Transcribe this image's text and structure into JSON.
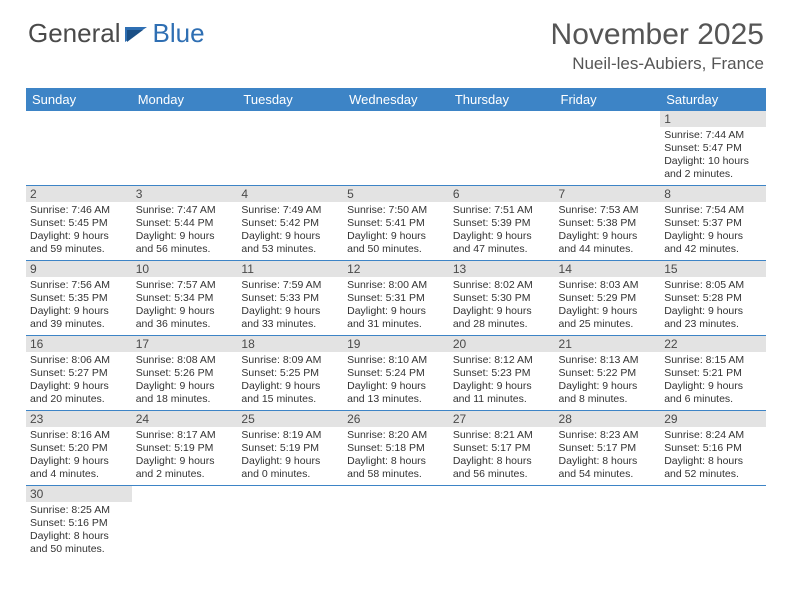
{
  "logo": {
    "part1": "General",
    "part2": "Blue"
  },
  "title": "November 2025",
  "location": "Nueil-les-Aubiers, France",
  "day_headers": [
    "Sunday",
    "Monday",
    "Tuesday",
    "Wednesday",
    "Thursday",
    "Friday",
    "Saturday"
  ],
  "colors": {
    "header_bg": "#3d84c6",
    "header_text": "#ffffff",
    "daynum_bg": "#e3e3e3",
    "cell_border": "#3d84c6",
    "logo_gray": "#4a4a4a",
    "logo_blue": "#2f6fb3",
    "title_color": "#555555",
    "body_text": "#333333"
  },
  "typography": {
    "month_title_size": 30,
    "location_size": 17,
    "header_size": 13,
    "daynum_size": 12,
    "info_size": 10.5,
    "logo_size": 26
  },
  "weeks": [
    [
      null,
      null,
      null,
      null,
      null,
      null,
      {
        "day": "1",
        "sunrise": "Sunrise: 7:44 AM",
        "sunset": "Sunset: 5:47 PM",
        "daylight": "Daylight: 10 hours and 2 minutes."
      }
    ],
    [
      {
        "day": "2",
        "sunrise": "Sunrise: 7:46 AM",
        "sunset": "Sunset: 5:45 PM",
        "daylight": "Daylight: 9 hours and 59 minutes."
      },
      {
        "day": "3",
        "sunrise": "Sunrise: 7:47 AM",
        "sunset": "Sunset: 5:44 PM",
        "daylight": "Daylight: 9 hours and 56 minutes."
      },
      {
        "day": "4",
        "sunrise": "Sunrise: 7:49 AM",
        "sunset": "Sunset: 5:42 PM",
        "daylight": "Daylight: 9 hours and 53 minutes."
      },
      {
        "day": "5",
        "sunrise": "Sunrise: 7:50 AM",
        "sunset": "Sunset: 5:41 PM",
        "daylight": "Daylight: 9 hours and 50 minutes."
      },
      {
        "day": "6",
        "sunrise": "Sunrise: 7:51 AM",
        "sunset": "Sunset: 5:39 PM",
        "daylight": "Daylight: 9 hours and 47 minutes."
      },
      {
        "day": "7",
        "sunrise": "Sunrise: 7:53 AM",
        "sunset": "Sunset: 5:38 PM",
        "daylight": "Daylight: 9 hours and 44 minutes."
      },
      {
        "day": "8",
        "sunrise": "Sunrise: 7:54 AM",
        "sunset": "Sunset: 5:37 PM",
        "daylight": "Daylight: 9 hours and 42 minutes."
      }
    ],
    [
      {
        "day": "9",
        "sunrise": "Sunrise: 7:56 AM",
        "sunset": "Sunset: 5:35 PM",
        "daylight": "Daylight: 9 hours and 39 minutes."
      },
      {
        "day": "10",
        "sunrise": "Sunrise: 7:57 AM",
        "sunset": "Sunset: 5:34 PM",
        "daylight": "Daylight: 9 hours and 36 minutes."
      },
      {
        "day": "11",
        "sunrise": "Sunrise: 7:59 AM",
        "sunset": "Sunset: 5:33 PM",
        "daylight": "Daylight: 9 hours and 33 minutes."
      },
      {
        "day": "12",
        "sunrise": "Sunrise: 8:00 AM",
        "sunset": "Sunset: 5:31 PM",
        "daylight": "Daylight: 9 hours and 31 minutes."
      },
      {
        "day": "13",
        "sunrise": "Sunrise: 8:02 AM",
        "sunset": "Sunset: 5:30 PM",
        "daylight": "Daylight: 9 hours and 28 minutes."
      },
      {
        "day": "14",
        "sunrise": "Sunrise: 8:03 AM",
        "sunset": "Sunset: 5:29 PM",
        "daylight": "Daylight: 9 hours and 25 minutes."
      },
      {
        "day": "15",
        "sunrise": "Sunrise: 8:05 AM",
        "sunset": "Sunset: 5:28 PM",
        "daylight": "Daylight: 9 hours and 23 minutes."
      }
    ],
    [
      {
        "day": "16",
        "sunrise": "Sunrise: 8:06 AM",
        "sunset": "Sunset: 5:27 PM",
        "daylight": "Daylight: 9 hours and 20 minutes."
      },
      {
        "day": "17",
        "sunrise": "Sunrise: 8:08 AM",
        "sunset": "Sunset: 5:26 PM",
        "daylight": "Daylight: 9 hours and 18 minutes."
      },
      {
        "day": "18",
        "sunrise": "Sunrise: 8:09 AM",
        "sunset": "Sunset: 5:25 PM",
        "daylight": "Daylight: 9 hours and 15 minutes."
      },
      {
        "day": "19",
        "sunrise": "Sunrise: 8:10 AM",
        "sunset": "Sunset: 5:24 PM",
        "daylight": "Daylight: 9 hours and 13 minutes."
      },
      {
        "day": "20",
        "sunrise": "Sunrise: 8:12 AM",
        "sunset": "Sunset: 5:23 PM",
        "daylight": "Daylight: 9 hours and 11 minutes."
      },
      {
        "day": "21",
        "sunrise": "Sunrise: 8:13 AM",
        "sunset": "Sunset: 5:22 PM",
        "daylight": "Daylight: 9 hours and 8 minutes."
      },
      {
        "day": "22",
        "sunrise": "Sunrise: 8:15 AM",
        "sunset": "Sunset: 5:21 PM",
        "daylight": "Daylight: 9 hours and 6 minutes."
      }
    ],
    [
      {
        "day": "23",
        "sunrise": "Sunrise: 8:16 AM",
        "sunset": "Sunset: 5:20 PM",
        "daylight": "Daylight: 9 hours and 4 minutes."
      },
      {
        "day": "24",
        "sunrise": "Sunrise: 8:17 AM",
        "sunset": "Sunset: 5:19 PM",
        "daylight": "Daylight: 9 hours and 2 minutes."
      },
      {
        "day": "25",
        "sunrise": "Sunrise: 8:19 AM",
        "sunset": "Sunset: 5:19 PM",
        "daylight": "Daylight: 9 hours and 0 minutes."
      },
      {
        "day": "26",
        "sunrise": "Sunrise: 8:20 AM",
        "sunset": "Sunset: 5:18 PM",
        "daylight": "Daylight: 8 hours and 58 minutes."
      },
      {
        "day": "27",
        "sunrise": "Sunrise: 8:21 AM",
        "sunset": "Sunset: 5:17 PM",
        "daylight": "Daylight: 8 hours and 56 minutes."
      },
      {
        "day": "28",
        "sunrise": "Sunrise: 8:23 AM",
        "sunset": "Sunset: 5:17 PM",
        "daylight": "Daylight: 8 hours and 54 minutes."
      },
      {
        "day": "29",
        "sunrise": "Sunrise: 8:24 AM",
        "sunset": "Sunset: 5:16 PM",
        "daylight": "Daylight: 8 hours and 52 minutes."
      }
    ],
    [
      {
        "day": "30",
        "sunrise": "Sunrise: 8:25 AM",
        "sunset": "Sunset: 5:16 PM",
        "daylight": "Daylight: 8 hours and 50 minutes."
      },
      null,
      null,
      null,
      null,
      null,
      null
    ]
  ]
}
